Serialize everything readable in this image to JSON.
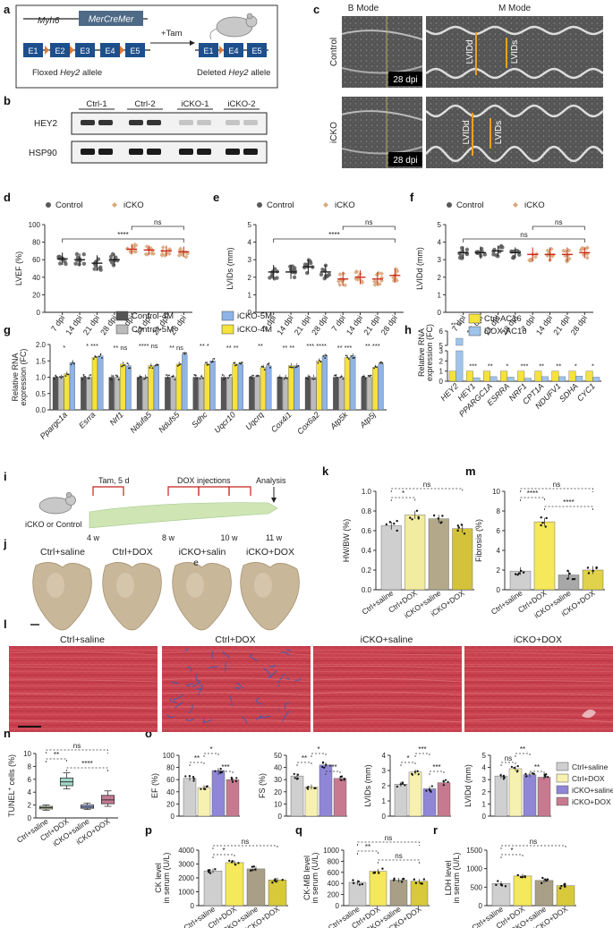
{
  "panels": [
    "a",
    "b",
    "c",
    "d",
    "e",
    "f",
    "g",
    "h",
    "i",
    "j",
    "k",
    "l",
    "m",
    "n",
    "o",
    "p",
    "q",
    "r"
  ],
  "colors": {
    "control": "#5a5a5a",
    "control_line": "#1c1c1c",
    "icko": "#d9a87b",
    "icko_line": "#cc2a1a",
    "ctrl4m": "#555555",
    "ctrl5m": "#bbbbbb",
    "icko5m": "#8fb4e6",
    "icko4m": "#f5e23a",
    "ctrl_ac16": "#f5e23a",
    "dox_ac16": "#9fc4ea",
    "ctrl_saline": "#cfcfcf",
    "ctrl_dox": "#f6f1b0",
    "icko_saline": "#8f86d6",
    "icko_dox": "#c77a8f",
    "k_ctrl_saline": "#cfcfcf",
    "k_ctrl_dox": "#f2eca0",
    "k_icko_saline": "#b3a98a",
    "k_icko_dox": "#d4c23a",
    "m_ctrl_saline": "#cfcfcf",
    "m_ctrl_dox": "#f5e85a",
    "m_icko_saline": "#a8a8a8",
    "m_icko_dox": "#e0d24a",
    "n_box1": "#d8eac4",
    "n_box2": "#9fd8c8",
    "n_box3": "#8fa6dc",
    "n_box4": "#c47a94",
    "pqr_ctrl_saline": "#cfcfcf",
    "pqr_ctrl_dox": "#f5e85a",
    "pqr_icko_saline": "#a89f86",
    "pqr_icko_dox": "#d8c93a",
    "sirius_bg": "#c83a4a",
    "fibrosis": "#3a5fb0",
    "heart": "#c9b79a"
  },
  "panel_a": {
    "transgene_gene": "Myh6",
    "transgene_cre": "MerCreMer",
    "treatment": "+Tam",
    "floxed_exons": [
      "E1",
      "E2",
      "E3",
      "E4",
      "E5"
    ],
    "floxed_label_prefix": "Floxed ",
    "floxed_label_gene": "Hey2",
    "floxed_label_suffix": " allele",
    "deleted_exons": [
      "E1",
      "E4",
      "E5"
    ],
    "deleted_label_prefix": "Deleted ",
    "deleted_label_gene": "Hey2",
    "deleted_label_suffix": " allele",
    "icon": "mouse-icon"
  },
  "panel_b": {
    "lanes": [
      "Ctrl-1",
      "Ctrl-2",
      "iCKO-1",
      "iCKO-2"
    ],
    "rows": [
      "HEY2",
      "HSP90"
    ],
    "hey2_intensity": [
      0.85,
      0.85,
      0.2,
      0.2
    ],
    "hsp90_intensity": [
      0.95,
      0.95,
      0.95,
      0.95
    ]
  },
  "panel_c": {
    "columns": [
      "B Mode",
      "M Mode"
    ],
    "rows": [
      "Control",
      "iCKO"
    ],
    "timepoint": "28 dpi",
    "measure_labels": [
      "LVIDd",
      "LVIDs"
    ]
  },
  "panel_i": {
    "subjects": "iCKO or Control",
    "tam_label": "Tam, 5 d",
    "dox_label": "DOX injections",
    "analysis_label": "Analysis",
    "timepoints": [
      "4 w",
      "8 w",
      "10 w",
      "11 w"
    ]
  },
  "panel_j": {
    "labels": [
      "Ctrl+saline",
      "Ctrl+DOX",
      "iCKO+salin",
      "iCKO+DOX"
    ],
    "marker": "e"
  },
  "panel_l": {
    "labels": [
      "Ctrl+saline",
      "Ctrl+DOX",
      "iCKO+saline",
      "iCKO+DOX"
    ]
  },
  "chart_data": [
    {
      "id": "d",
      "type": "scatter",
      "legend": [
        "Control",
        "iCKO"
      ],
      "categories": [
        "7 dpi",
        "14 dpi",
        "21 dpi",
        "28 dpi",
        "7 dpi",
        "14 dpi",
        "21 dpi",
        "28 dpi"
      ],
      "ylabel": "LVEF (%)",
      "ylim": [
        0,
        100
      ],
      "yticks": [
        0,
        20,
        40,
        60,
        80,
        100
      ],
      "means": [
        61,
        60,
        56,
        60,
        72,
        71,
        70,
        69
      ],
      "sd": [
        7,
        7,
        9,
        7,
        6,
        5,
        6,
        6
      ],
      "annotations": [
        {
          "label": "****"
        },
        {
          "label": "ns"
        }
      ]
    },
    {
      "id": "e",
      "type": "scatter",
      "legend": [
        "Control",
        "iCKO"
      ],
      "categories": [
        "7 dpi",
        "14 dpi",
        "21 dpi",
        "28 dpi",
        "7 dpi",
        "14 dpi",
        "21 dpi",
        "28 dpi"
      ],
      "ylabel": "LVIDs (mm)",
      "ylim": [
        0,
        5
      ],
      "yticks": [
        0,
        1,
        2,
        3,
        4,
        5
      ],
      "means": [
        2.3,
        2.3,
        2.6,
        2.3,
        1.9,
        2.0,
        1.9,
        2.1
      ],
      "sd": [
        0.4,
        0.4,
        0.4,
        0.4,
        0.4,
        0.4,
        0.4,
        0.4
      ],
      "annotations": [
        {
          "label": "****"
        },
        {
          "label": "ns"
        }
      ]
    },
    {
      "id": "f",
      "type": "scatter",
      "legend": [
        "Control",
        "iCKO"
      ],
      "categories": [
        "7 dpi",
        "14 dpi",
        "21 dpi",
        "28 dpi",
        "7 dpi",
        "14 dpi",
        "21 dpi",
        "28 dpi"
      ],
      "ylabel": "LVIDd (mm)",
      "ylim": [
        0,
        5
      ],
      "yticks": [
        0,
        1,
        2,
        3,
        4,
        5
      ],
      "means": [
        3.4,
        3.4,
        3.5,
        3.4,
        3.3,
        3.3,
        3.3,
        3.4
      ],
      "sd": [
        0.35,
        0.35,
        0.3,
        0.3,
        0.4,
        0.4,
        0.4,
        0.3
      ],
      "annotations": [
        {
          "label": "ns"
        },
        {
          "label": "ns"
        }
      ]
    },
    {
      "id": "g",
      "type": "bar",
      "ylabel": "Relative RNA expression (FC)",
      "ylim": [
        0,
        2
      ],
      "yticks": [
        0.0,
        0.5,
        1.0,
        1.5,
        2.0
      ],
      "categories": [
        "Ppargc1a",
        "Esrra",
        "Nrf1",
        "Ndufa5",
        "Ndufs5",
        "Sdhc",
        "Uqcr10",
        "Uqcrq",
        "Cox4i1",
        "Cox6a2",
        "Atp5k",
        "Atp5j"
      ],
      "series": [
        {
          "name": "Control-4M",
          "values": [
            1.0,
            1.0,
            1.0,
            1.0,
            1.0,
            1.0,
            1.0,
            1.0,
            1.0,
            1.0,
            1.0,
            1.0
          ]
        },
        {
          "name": "Control-5M",
          "values": [
            1.0,
            1.0,
            1.0,
            1.0,
            1.0,
            1.0,
            1.0,
            1.0,
            1.0,
            1.0,
            1.0,
            1.0
          ]
        },
        {
          "name": "iCKO-4M",
          "values": [
            1.1,
            1.6,
            1.4,
            1.35,
            1.4,
            1.4,
            1.4,
            1.3,
            1.35,
            1.5,
            1.6,
            1.3
          ]
        },
        {
          "name": "iCKO-5M",
          "values": [
            1.45,
            1.65,
            1.35,
            1.35,
            1.7,
            1.5,
            1.4,
            1.35,
            1.35,
            1.65,
            1.65,
            1.4
          ]
        }
      ],
      "sig": [
        "*",
        "* ***",
        "** ns",
        "**** ns",
        "** ns",
        "** *",
        "** **",
        "**",
        "** **",
        "*** ****",
        "** ***",
        "** ***"
      ]
    },
    {
      "id": "h",
      "type": "bar",
      "ylabel": "Relative RNA expression (FC)",
      "ylim": [
        0,
        6
      ],
      "yticks": [
        0,
        1,
        2,
        3,
        5,
        6
      ],
      "categories": [
        "HEY2",
        "HEY1",
        "PPARGC1A",
        "ESRRA",
        "NRF1",
        "CPT1A",
        "NDUFV1",
        "SDHA",
        "CYC1"
      ],
      "series": [
        {
          "name": "Ctrl-AC16",
          "values": [
            1.0,
            1.0,
            1.0,
            1.0,
            1.0,
            1.0,
            1.0,
            1.0,
            1.0
          ]
        },
        {
          "name": "DOX-AC16",
          "values": [
            5.5,
            0.35,
            0.45,
            0.4,
            0.3,
            0.45,
            0.45,
            0.5,
            0.4
          ]
        }
      ],
      "sig": [
        "****",
        "***",
        "**",
        "*",
        "***",
        "**",
        "**",
        "*",
        "*"
      ]
    },
    {
      "id": "k",
      "type": "bar",
      "ylabel": "HW/BW (%)",
      "ylim": [
        0,
        1.0
      ],
      "yticks": [
        0.0,
        0.2,
        0.4,
        0.6,
        0.8,
        1.0
      ],
      "categories": [
        "Ctrl+saline",
        "Ctrl+DOX",
        "iCKO+saline",
        "iCKO+DOX"
      ],
      "values": [
        0.65,
        0.76,
        0.72,
        0.62
      ],
      "annotations": [
        {
          "label": "ns"
        },
        {
          "label": "*"
        }
      ]
    },
    {
      "id": "m",
      "type": "bar",
      "ylabel": "Fibrosis (%)",
      "ylim": [
        0,
        10
      ],
      "yticks": [
        0,
        2,
        4,
        6,
        8,
        10
      ],
      "categories": [
        "Ctrl+saline",
        "Ctrl+DOX",
        "iCKO+saline",
        "iCKO+DOX"
      ],
      "values": [
        1.9,
        6.9,
        1.5,
        2.0
      ],
      "annotations": [
        {
          "label": "ns"
        },
        {
          "label": "****"
        },
        {
          "label": "****"
        }
      ]
    },
    {
      "id": "n",
      "type": "box",
      "ylabel_prefix": "TUNEL",
      "ylabel_sup": "+",
      "ylabel_suffix": " cells (%)",
      "ylim": [
        0,
        10
      ],
      "yticks": [
        0,
        2,
        4,
        6,
        8,
        10
      ],
      "categories": [
        "Ctrl+saline",
        "Ctrl+DOX",
        "iCKO+saline",
        "iCKO+DOX"
      ],
      "boxes": [
        {
          "min": 1.2,
          "q1": 1.4,
          "median": 1.6,
          "q3": 1.8,
          "max": 2.0
        },
        {
          "min": 4.5,
          "q1": 5.0,
          "median": 5.6,
          "q3": 6.2,
          "max": 7.0
        },
        {
          "min": 1.3,
          "q1": 1.5,
          "median": 1.7,
          "q3": 2.0,
          "max": 2.3
        },
        {
          "min": 1.8,
          "q1": 2.2,
          "median": 2.8,
          "q3": 3.5,
          "max": 4.2
        }
      ],
      "annotations": [
        {
          "label": "ns"
        },
        {
          "label": "**"
        },
        {
          "label": "****"
        }
      ]
    },
    {
      "id": "o1",
      "type": "bar",
      "ylabel": "EF (%)",
      "ylim": [
        0,
        100
      ],
      "yticks": [
        0,
        20,
        40,
        60,
        80,
        100
      ],
      "categories": [
        "Ctrl+saline",
        "Ctrl+DOX",
        "iCKO+saline",
        "iCKO+DOX"
      ],
      "values": [
        62,
        47,
        75,
        60
      ],
      "annotations": [
        {
          "label": "**"
        },
        {
          "label": "*"
        },
        {
          "label": "***"
        }
      ]
    },
    {
      "id": "o2",
      "type": "bar",
      "ylabel": "FS (%)",
      "ylim": [
        0,
        50
      ],
      "yticks": [
        0,
        10,
        20,
        30,
        40,
        50
      ],
      "categories": [
        "Ctrl+saline",
        "Ctrl+DOX",
        "iCKO+saline",
        "iCKO+DOX"
      ],
      "values": [
        33,
        24,
        42,
        31
      ],
      "annotations": [
        {
          "label": "**"
        },
        {
          "label": "*"
        },
        {
          "label": "***"
        }
      ]
    },
    {
      "id": "o3",
      "type": "bar",
      "ylabel": "LVIDs (mm)",
      "ylim": [
        0,
        4
      ],
      "yticks": [
        0,
        1,
        2,
        3,
        4
      ],
      "categories": [
        "Ctrl+saline",
        "Ctrl+DOX",
        "iCKO+saline",
        "iCKO+DOX"
      ],
      "values": [
        2.1,
        2.9,
        1.8,
        2.2
      ],
      "annotations": [
        {
          "label": "*"
        },
        {
          "label": "***"
        },
        {
          "label": "***"
        }
      ]
    },
    {
      "id": "o4",
      "type": "bar",
      "ylabel": "LVIDd (mm)",
      "ylim": [
        0,
        5
      ],
      "yticks": [
        0,
        1,
        2,
        3,
        4,
        5
      ],
      "categories": [
        "Ctrl+saline",
        "Ctrl+DOX",
        "iCKO+saline",
        "iCKO+DOX"
      ],
      "values": [
        3.3,
        3.9,
        3.4,
        3.2
      ],
      "legend": [
        "Ctrl+saline",
        "Ctrl+DOX",
        "iCKO+saline",
        "iCKO+DOX"
      ],
      "annotations": [
        {
          "label": "ns"
        },
        {
          "label": "**"
        },
        {
          "label": "**"
        }
      ]
    },
    {
      "id": "p",
      "type": "bar",
      "ylabel": "CK level in serum (U/L)",
      "ylim": [
        0,
        4000
      ],
      "yticks": [
        0,
        1000,
        2000,
        3000,
        4000
      ],
      "categories": [
        "Ctrl+saline",
        "Ctrl+DOX",
        "iCKO+saline",
        "iCKO+DOX"
      ],
      "values": [
        2500,
        3100,
        2650,
        1850
      ],
      "annotations": [
        {
          "label": "ns"
        },
        {
          "label": "*"
        }
      ]
    },
    {
      "id": "q",
      "type": "bar",
      "ylabel": "CK-MB level in serum (U/L)",
      "ylim": [
        0,
        1000
      ],
      "yticks": [
        0,
        200,
        400,
        600,
        800,
        1000
      ],
      "categories": [
        "Ctrl+saline",
        "Ctrl+DOX",
        "iCKO+saline",
        "iCKO+DOX"
      ],
      "values": [
        420,
        620,
        460,
        440
      ],
      "annotations": [
        {
          "label": "ns"
        },
        {
          "label": "**"
        },
        {
          "label": "ns"
        }
      ]
    },
    {
      "id": "r",
      "type": "bar",
      "ylabel": "LDH level in serum (U/L)",
      "ylim": [
        0,
        1500
      ],
      "yticks": [
        0,
        500,
        1000,
        1500
      ],
      "categories": [
        "Ctrl+saline",
        "Ctrl+DOX",
        "iCKO+saline",
        "iCKO+DOX"
      ],
      "values": [
        600,
        800,
        680,
        540
      ],
      "annotations": [
        {
          "label": "ns"
        },
        {
          "label": "*"
        }
      ]
    }
  ]
}
